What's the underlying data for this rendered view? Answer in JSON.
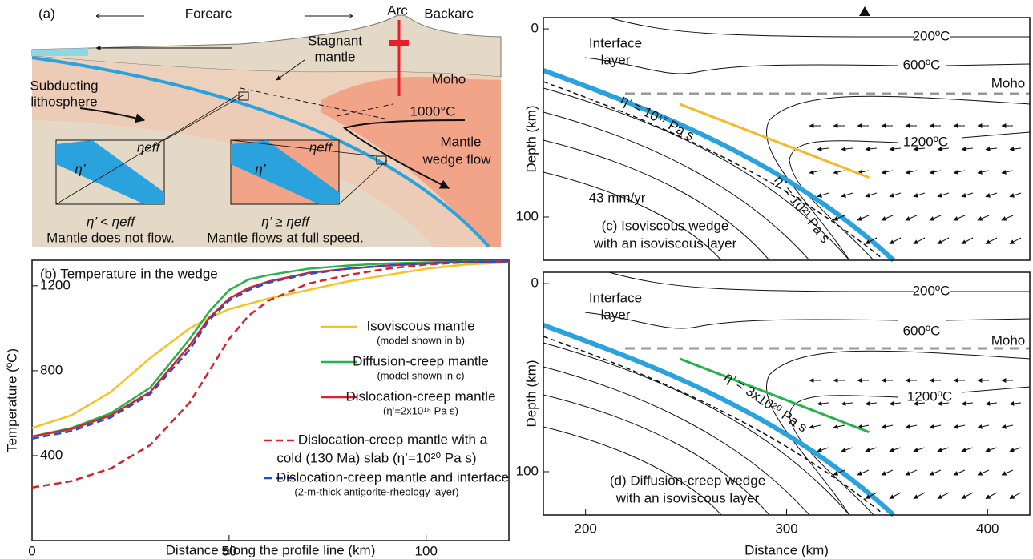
{
  "panel_a": {
    "label": "(a)",
    "regions": [
      "Forearc",
      "Arc",
      "Backarc"
    ],
    "texts": [
      "Stagnant",
      "mantle",
      "Moho",
      "Subducting",
      "lithosphere",
      "1000°C",
      "Mantle",
      "wedge flow",
      "η’",
      "ηeff",
      "η’",
      "ηeff"
    ],
    "captions": [
      "η’ < ηeff",
      "Mantle does not flow.",
      "η’ ≥ ηeff",
      "Mantle flows at full speed."
    ]
  },
  "chart_data": [
    {
      "type": "line",
      "title": "(b) Temperature in the wedge",
      "x_label": "Distance along the profile line (km)",
      "y_label": "Temperature (ºC)",
      "x": [
        0,
        10,
        20,
        30,
        40,
        45,
        50,
        55,
        60,
        70,
        80,
        90,
        100,
        110,
        121
      ],
      "xlim": [
        0,
        121
      ],
      "ylim": [
        0,
        1320
      ],
      "xticks": [
        0,
        50,
        100
      ],
      "yticks": [
        400,
        800,
        1200
      ],
      "grid": false,
      "series": [
        {
          "name": "Isoviscous mantle",
          "sublabel": "(model shown in b)",
          "color": "#f5c324",
          "dash": false,
          "values": [
            530,
            590,
            700,
            860,
            1000,
            1050,
            1090,
            1115,
            1140,
            1180,
            1220,
            1250,
            1280,
            1300,
            1310
          ]
        },
        {
          "name": "Diffusion-creep mantle",
          "sublabel": "(model shown in c)",
          "color": "#27b34b",
          "dash": false,
          "values": [
            490,
            530,
            600,
            720,
            950,
            1080,
            1180,
            1230,
            1250,
            1280,
            1295,
            1305,
            1310,
            1315,
            1315
          ]
        },
        {
          "name": "Dislocation-creep mantle",
          "sublabel": "(η’=2x10¹⁸ Pa s)",
          "color": "#d8232a",
          "dash": false,
          "values": [
            490,
            525,
            590,
            700,
            920,
            1050,
            1140,
            1190,
            1220,
            1260,
            1280,
            1295,
            1305,
            1312,
            1315
          ]
        },
        {
          "name": "Dislocation-creep mantle with a",
          "sublabel": "cold (130 Ma) slab (η’=10²⁰ Pa s)",
          "color": "#d8232a",
          "dash": true,
          "values": [
            250,
            280,
            340,
            450,
            650,
            800,
            950,
            1060,
            1130,
            1210,
            1250,
            1280,
            1300,
            1310,
            1315
          ]
        },
        {
          "name": "Dislocation-creep mantle and interface",
          "sublabel": "(2-m-thick antigorite-rheology layer)",
          "color": "#1f4fd8",
          "dash": true,
          "values": [
            480,
            515,
            580,
            690,
            900,
            1040,
            1130,
            1180,
            1215,
            1255,
            1280,
            1295,
            1305,
            1312,
            1315
          ]
        }
      ]
    },
    {
      "type": "field",
      "title": [
        "(c) Isoviscous wedge",
        "with an isoviscous layer"
      ],
      "y_label": "Depth (km)",
      "annotations": [
        "Interface",
        "layer",
        "200ºC",
        "600ºC",
        "Moho",
        "1200ºC",
        "η’ = 10¹⁷ Pa s",
        "η’ = 10²¹ Pa s",
        "43 mm/yr"
      ],
      "xlim": [
        179,
        421
      ],
      "ylim": [
        -6,
        123
      ],
      "yticks": [
        0,
        100
      ],
      "series": [
        {
          "color": "#f5b82a",
          "x": [
            247,
            341
          ],
          "values": [
            40,
            79
          ]
        }
      ]
    },
    {
      "type": "field",
      "title": [
        "(d) Diffusion-creep wedge",
        "with an isoviscous layer"
      ],
      "y_label": "Depth (km)",
      "x_label": "Distance (km)",
      "annotations": [
        "Interface",
        "layer",
        "200ºC",
        "600ºC",
        "Moho",
        "1200ºC",
        "η’ = 3x10²⁰ Pa s"
      ],
      "xlim": [
        179,
        421
      ],
      "ylim": [
        -6,
        123
      ],
      "xticks": [
        200,
        300,
        400
      ],
      "yticks": [
        0,
        100
      ],
      "series": [
        {
          "color": "#27b34b",
          "x": [
            247,
            341
          ],
          "values": [
            40,
            79
          ]
        }
      ]
    }
  ]
}
